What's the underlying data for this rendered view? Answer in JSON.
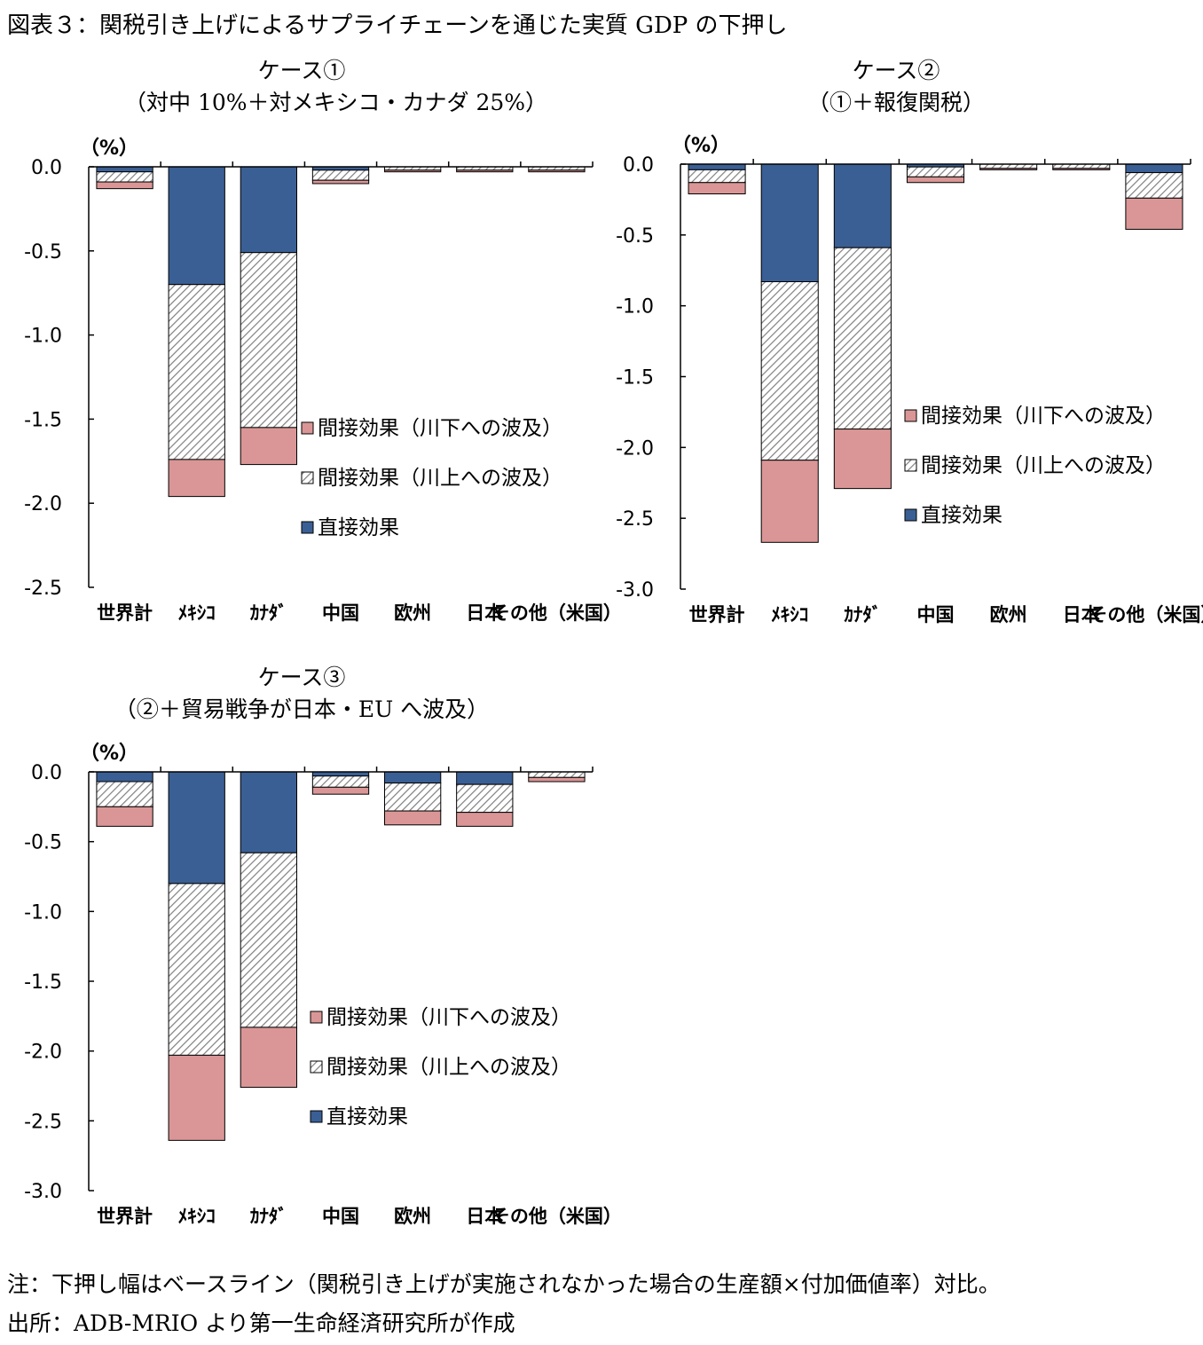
{
  "figure_title": "図表３：関税引き上げによるサプライチェーンを通じた実質 GDP の下押し",
  "note": "注：下押し幅はベースライン（関税引き上げが実施されなかった場合の生産額×付加価値率）対比。",
  "source": "出所：ADB-MRIO より第一生命経済研究所が作成",
  "colors": {
    "direct": "#3A5F94",
    "upstream": "#FFFFFF",
    "upstream_hatch": "#808080",
    "downstream": "#DA9696",
    "axis": "#000000"
  },
  "chart_data": [
    {
      "type": "bar",
      "stacked": true,
      "title": "ケース①",
      "subtitle": "（対中 10%＋対メキシコ・カナダ 25%）",
      "ylabel": "（%）",
      "ylim": [
        -2.5,
        0.0
      ],
      "yticks": [
        "0.0",
        "-0.5",
        "-1.0",
        "-1.5",
        "-2.0",
        "-2.5"
      ],
      "legend_position": "center-right",
      "categories": [
        "世界計",
        "ﾒｷｼｺ",
        "ｶﾅﾀﾞ",
        "中国",
        "欧州",
        "日本",
        "その他（米国）"
      ],
      "series": [
        {
          "name": "直接効果",
          "values": [
            -0.03,
            -0.7,
            -0.51,
            -0.02,
            0.0,
            0.0,
            0.0
          ]
        },
        {
          "name": "間接効果（川上への波及）",
          "values": [
            -0.06,
            -1.04,
            -1.04,
            -0.06,
            -0.02,
            -0.02,
            -0.02
          ]
        },
        {
          "name": "間接効果（川下への波及）",
          "values": [
            -0.04,
            -0.22,
            -0.22,
            -0.02,
            -0.01,
            -0.01,
            -0.01
          ]
        }
      ],
      "series_display": [
        {
          "name": "間接効果（川下への波及）"
        },
        {
          "name": "間接効果（川上への波及）"
        },
        {
          "name": "直接効果"
        }
      ],
      "ymin_value": -2.5
    },
    {
      "type": "bar",
      "stacked": true,
      "title": "ケース②",
      "subtitle": "（①＋報復関税）",
      "ylabel": "（%）",
      "ylim": [
        -3.0,
        0.0
      ],
      "yticks": [
        "0.0",
        "-0.5",
        "-1.0",
        "-1.5",
        "-2.0",
        "-2.5",
        "-3.0"
      ],
      "legend_position": "center-right",
      "categories": [
        "世界計",
        "ﾒｷｼｺ",
        "ｶﾅﾀﾞ",
        "中国",
        "欧州",
        "日本",
        "その他（米国）"
      ],
      "series": [
        {
          "name": "直接効果",
          "values": [
            -0.04,
            -0.83,
            -0.59,
            -0.02,
            0.0,
            0.0,
            -0.06
          ]
        },
        {
          "name": "間接効果（川上への波及）",
          "values": [
            -0.09,
            -1.26,
            -1.28,
            -0.07,
            -0.03,
            -0.03,
            -0.18
          ]
        },
        {
          "name": "間接効果（川下への波及）",
          "values": [
            -0.08,
            -0.58,
            -0.42,
            -0.04,
            -0.01,
            -0.01,
            -0.22
          ]
        }
      ],
      "series_display": [
        {
          "name": "間接効果（川下への波及）"
        },
        {
          "name": "間接効果（川上への波及）"
        },
        {
          "name": "直接効果"
        }
      ]
    },
    {
      "type": "bar",
      "stacked": true,
      "title": "ケース③",
      "subtitle": "（②＋貿易戦争が日本・EU へ波及）",
      "ylabel": "（%）",
      "ylim": [
        -3.0,
        0.0
      ],
      "yticks": [
        "0.0",
        "-0.5",
        "-1.0",
        "-1.5",
        "-2.0",
        "-2.5",
        "-3.0"
      ],
      "legend_position": "center-right",
      "categories": [
        "世界計",
        "ﾒｷｼｺ",
        "ｶﾅﾀﾞ",
        "中国",
        "欧州",
        "日本",
        "その他（米国）"
      ],
      "series": [
        {
          "name": "直接効果",
          "values": [
            -0.07,
            -0.8,
            -0.58,
            -0.03,
            -0.08,
            -0.09,
            0.0
          ]
        },
        {
          "name": "間接効果（川上への波及）",
          "values": [
            -0.18,
            -1.23,
            -1.25,
            -0.08,
            -0.2,
            -0.2,
            -0.04
          ]
        },
        {
          "name": "間接効果（川下への波及）",
          "values": [
            -0.14,
            -0.61,
            -0.43,
            -0.05,
            -0.1,
            -0.1,
            -0.03
          ]
        }
      ],
      "series_display": [
        {
          "name": "間接効果（川下への波及）"
        },
        {
          "name": "間接効果（川上への波及）"
        },
        {
          "name": "直接効果"
        }
      ]
    }
  ]
}
